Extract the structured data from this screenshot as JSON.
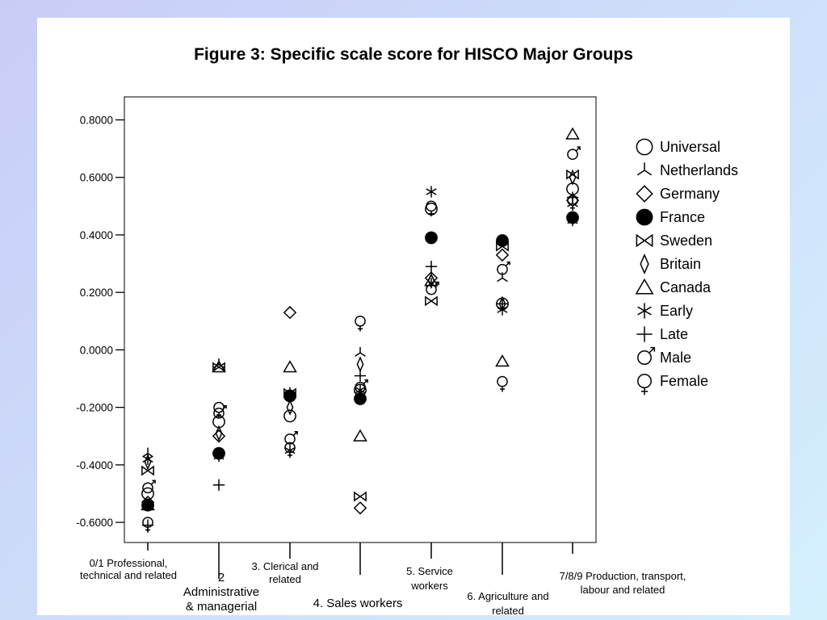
{
  "page": {
    "title": "Figure 3: Specific scale score for HISCO Major Groups"
  },
  "chart_data": {
    "type": "scatter",
    "title": "Figure 3: Specific scale score for HISCO Major Groups",
    "xlabel": "",
    "ylabel": "",
    "ylim": [
      -0.67,
      0.88
    ],
    "yticks": [
      "0.8000",
      "0.6000",
      "0.4000",
      "0.2000",
      "0.0000",
      "-0.2000",
      "-0.4000",
      "-0.6000"
    ],
    "ytick_values": [
      0.8,
      0.6,
      0.4,
      0.2,
      0.0,
      -0.2,
      -0.4,
      -0.6
    ],
    "grid": false,
    "legend_placement": "right",
    "categories": [
      "0/1 Professional, technical and related",
      "2 Administrative & managerial",
      "3. Clerical and related",
      "4. Sales workers",
      "5. Service workers",
      "6. Agriculture and related",
      "7/8/9 Production, transport, labour and related"
    ],
    "category_label_lines": [
      [
        "0/1 Professional,",
        "technical and related"
      ],
      [
        "2",
        "Administrative",
        "& managerial"
      ],
      [
        "3. Clerical and",
        "related"
      ],
      [
        "4. Sales workers"
      ],
      [
        "5. Service",
        "workers"
      ],
      [
        "6. Agriculture and",
        "related"
      ],
      [
        "7/8/9 Production, transport,",
        "labour and related"
      ]
    ],
    "series": [
      {
        "name": "Universal",
        "marker": "circle",
        "values": [
          -0.5,
          -0.25,
          -0.23,
          -0.14,
          0.49,
          0.16,
          0.56
        ]
      },
      {
        "name": "Netherlands",
        "marker": "tri-branch",
        "values": [
          -0.36,
          -0.05,
          -0.15,
          -0.01,
          0.23,
          0.25,
          0.51
        ]
      },
      {
        "name": "Germany",
        "marker": "diamond",
        "values": [
          -0.53,
          -0.3,
          0.13,
          -0.55,
          0.25,
          0.33,
          0.52
        ]
      },
      {
        "name": "France",
        "marker": "filled-circle",
        "values": [
          -0.54,
          -0.36,
          -0.16,
          -0.17,
          0.39,
          0.38,
          0.46
        ]
      },
      {
        "name": "Sweden",
        "marker": "bowtie",
        "values": [
          -0.42,
          -0.06,
          -0.15,
          -0.51,
          0.17,
          0.36,
          0.61
        ]
      },
      {
        "name": "Britain",
        "marker": "thin-diamond",
        "values": [
          -0.39,
          -0.29,
          -0.2,
          -0.05,
          0.24,
          0.16,
          0.6
        ]
      },
      {
        "name": "Canada",
        "marker": "triangle",
        "values": [
          -0.54,
          -0.06,
          -0.06,
          -0.3,
          0.24,
          -0.04,
          0.75
        ]
      },
      {
        "name": "Early",
        "marker": "asterisk",
        "values": [
          -0.38,
          -0.37,
          -0.35,
          -0.14,
          0.55,
          0.14,
          0.45
        ]
      },
      {
        "name": "Late",
        "marker": "plus",
        "values": [
          -0.61,
          -0.47,
          -0.16,
          -0.09,
          0.29,
          0.16,
          0.53
        ]
      },
      {
        "name": "Male",
        "marker": "male",
        "values": [
          -0.48,
          -0.22,
          -0.31,
          -0.13,
          0.21,
          0.28,
          0.68
        ]
      },
      {
        "name": "Female",
        "marker": "female",
        "values": [
          -0.6,
          -0.2,
          -0.34,
          0.1,
          0.5,
          -0.11,
          0.52
        ]
      }
    ],
    "colors": {
      "marker": "#000000",
      "background": "#ffffff"
    }
  }
}
